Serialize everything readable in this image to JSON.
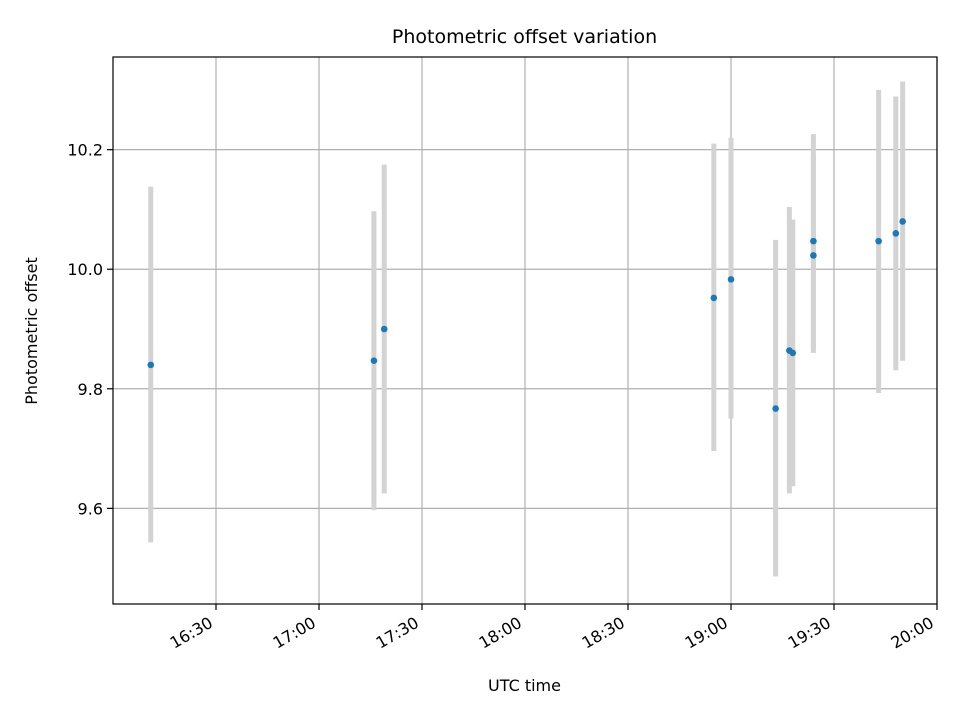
{
  "chart_data": {
    "type": "scatter",
    "title": "Photometric offset variation",
    "xlabel": "UTC time",
    "ylabel": "Photometric offset",
    "grid": true,
    "colors": {
      "point": "#1f77b4",
      "errorbar": "#d3d3d3",
      "grid": "#b0b0b0"
    },
    "xlim": [
      "16:00",
      "20:00"
    ],
    "ylim": [
      9.44,
      10.355
    ],
    "x_ticks": [
      "16:30",
      "17:00",
      "17:30",
      "18:00",
      "18:30",
      "19:00",
      "19:30",
      "20:00"
    ],
    "y_ticks": [
      "9.6",
      "9.8",
      "10.0",
      "10.2"
    ],
    "x": [
      "16:11",
      "17:16",
      "17:19",
      "18:55",
      "19:00",
      "19:13",
      "19:17",
      "19:18",
      "19:24",
      "19:24",
      "19:43",
      "19:48",
      "19:50"
    ],
    "y": [
      9.84,
      9.847,
      9.9,
      9.952,
      9.983,
      9.767,
      9.864,
      9.86,
      10.023,
      10.047,
      10.047,
      10.06,
      10.08
    ],
    "yerr_low": [
      9.543,
      9.597,
      9.625,
      9.696,
      9.75,
      9.486,
      9.625,
      9.637,
      9.86,
      9.869,
      9.793,
      9.831,
      9.847
    ],
    "yerr_high": [
      10.138,
      10.097,
      10.175,
      10.21,
      10.22,
      10.049,
      10.104,
      10.083,
      10.19,
      10.226,
      10.3,
      10.289,
      10.314
    ]
  }
}
